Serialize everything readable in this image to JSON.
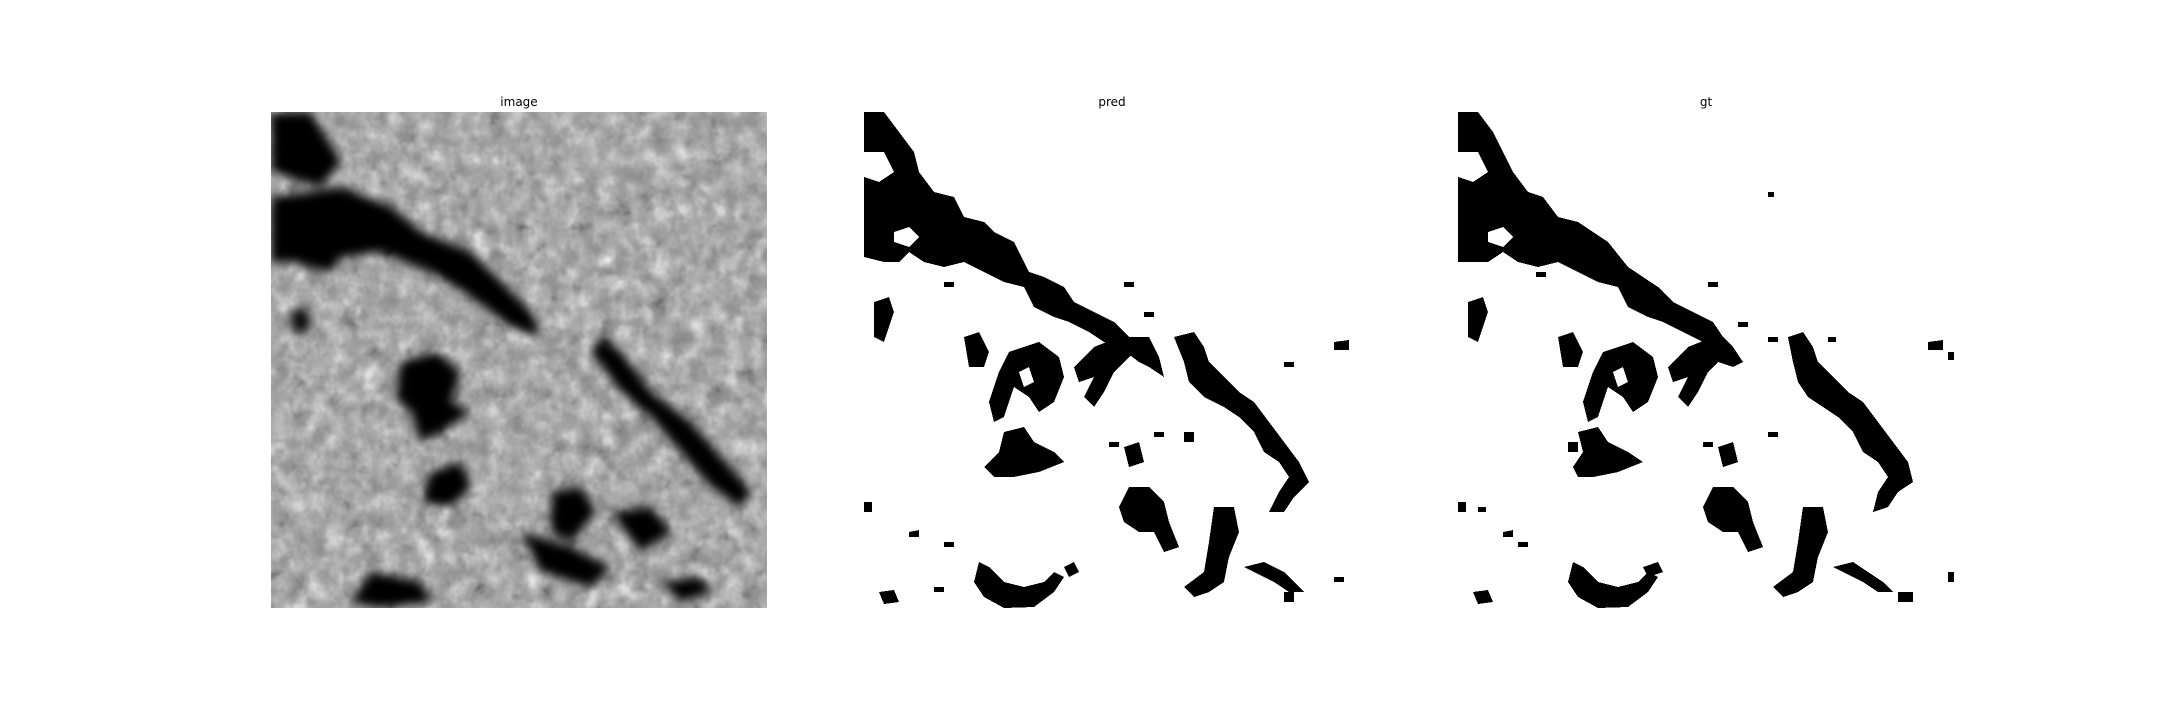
{
  "figure": {
    "panels": [
      {
        "id": "image",
        "title": "image"
      },
      {
        "id": "pred",
        "title": "pred"
      },
      {
        "id": "gt",
        "title": "gt"
      }
    ],
    "colors": {
      "background": "#ffffff",
      "mask_fg": "#000000",
      "mask_bg": "#ffffff"
    }
  }
}
